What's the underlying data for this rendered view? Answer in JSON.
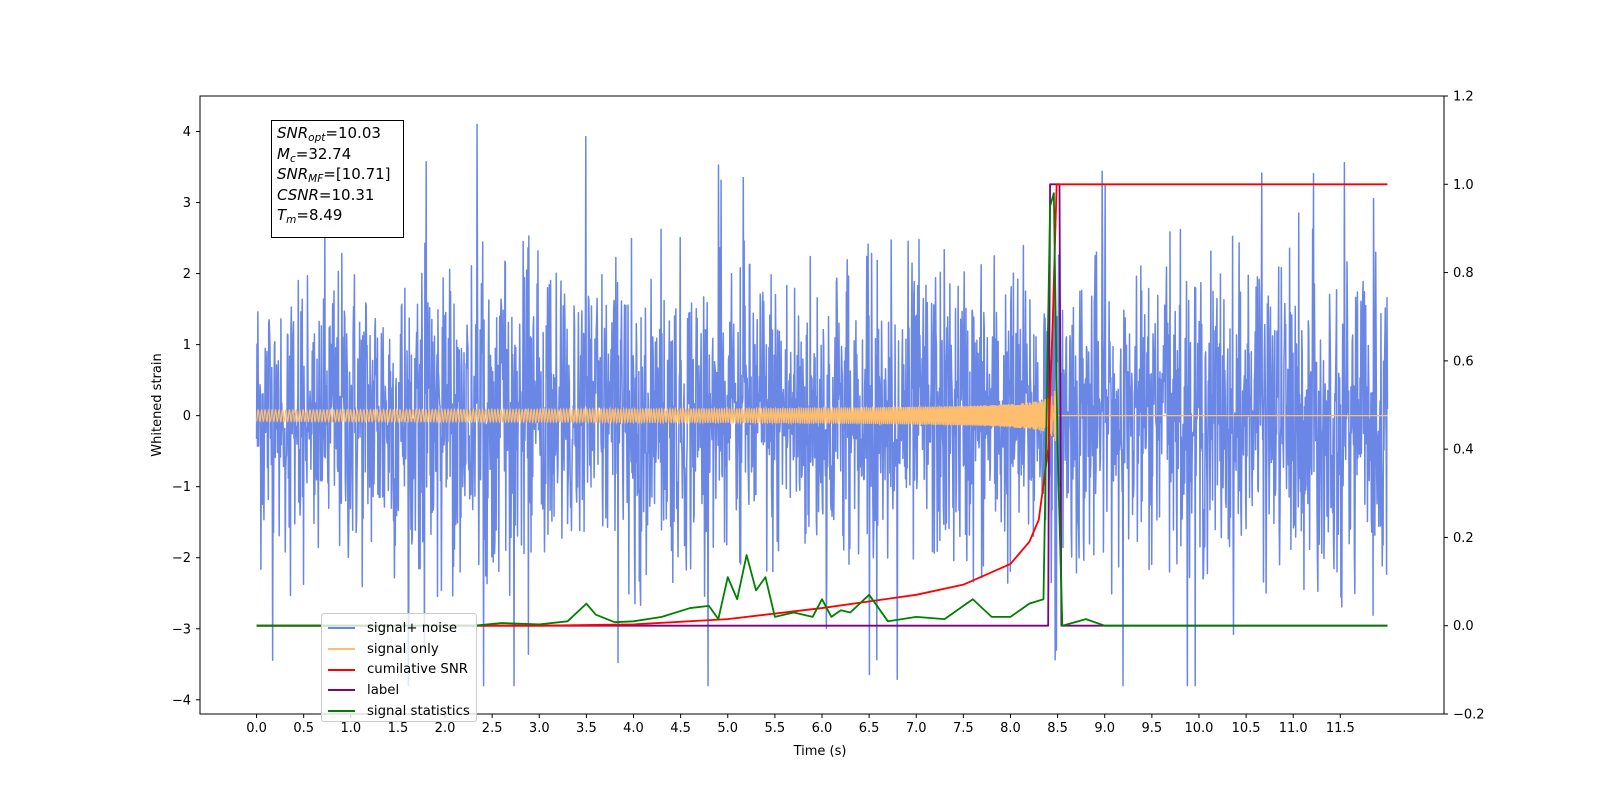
{
  "chart_data": {
    "type": "line",
    "xlabel": "Time (s)",
    "ylabel": "Whitened strain",
    "xlim": [
      -0.6,
      12.6
    ],
    "ylim": [
      -4.2,
      4.5
    ],
    "ylim_right": [
      -0.2,
      1.2
    ],
    "x_ticks": [
      "0.0",
      "0.5",
      "1.0",
      "1.5",
      "2.0",
      "2.5",
      "3.0",
      "3.5",
      "4.0",
      "4.5",
      "5.0",
      "5.5",
      "6.0",
      "6.5",
      "7.0",
      "7.5",
      "8.0",
      "8.5",
      "9.0",
      "9.5",
      "10.0",
      "10.5",
      "11.0",
      "11.5"
    ],
    "y_ticks_left": [
      "−4",
      "−3",
      "−2",
      "−1",
      "0",
      "1",
      "2",
      "3",
      "4"
    ],
    "y_ticks_right": [
      "−0.2",
      "0.0",
      "0.2",
      "0.4",
      "0.6",
      "0.8",
      "1.0",
      "1.2"
    ],
    "annotation": {
      "snr_opt": "10.03",
      "mc": "32.74",
      "snr_mf": "[10.71]",
      "csnr": "10.31",
      "tm": "8.49"
    },
    "legend_placement": "lower-left",
    "series": [
      {
        "name": "signal+ noise",
        "color": "#6a87e6",
        "axis": "left",
        "description_values": "noise band approx ±2.8 with peaks to ±4.1, x 0 to 12"
      },
      {
        "name": "signal only",
        "color": "#ffbe6e",
        "axis": "left",
        "chirp": {
          "t_merge": 8.49,
          "peak_amp": 0.55
        }
      },
      {
        "name": "cumilative SNR",
        "color": "#ff0000",
        "axis": "right",
        "x": [
          0.0,
          3.0,
          4.0,
          5.0,
          6.0,
          7.0,
          7.5,
          8.0,
          8.2,
          8.3,
          8.4,
          8.45,
          8.49,
          8.5,
          12.0
        ],
        "y": [
          0.0,
          0.0,
          0.003,
          0.015,
          0.04,
          0.07,
          0.093,
          0.14,
          0.19,
          0.24,
          0.4,
          0.7,
          1.0,
          1.0,
          1.0
        ]
      },
      {
        "name": "label",
        "color": "#800080",
        "axis": "right",
        "x": [
          0.0,
          8.4,
          8.42,
          8.52,
          8.54,
          12.0
        ],
        "y": [
          0.0,
          0.0,
          1.0,
          1.0,
          0.0,
          0.0
        ]
      },
      {
        "name": "signal statistics",
        "color": "#008000",
        "axis": "right",
        "x": [
          0.0,
          2.3,
          2.6,
          3.0,
          3.3,
          3.5,
          3.6,
          3.8,
          4.0,
          4.3,
          4.6,
          4.8,
          4.9,
          5.0,
          5.1,
          5.2,
          5.3,
          5.4,
          5.5,
          5.7,
          5.9,
          6.0,
          6.1,
          6.2,
          6.3,
          6.5,
          6.7,
          7.0,
          7.3,
          7.6,
          7.8,
          8.0,
          8.2,
          8.35,
          8.42,
          8.46,
          8.5,
          8.55,
          8.8,
          9.0,
          12.0
        ],
        "y": [
          0.0,
          0.0,
          0.006,
          0.003,
          0.01,
          0.05,
          0.025,
          0.008,
          0.01,
          0.02,
          0.04,
          0.045,
          0.015,
          0.11,
          0.06,
          0.16,
          0.08,
          0.11,
          0.02,
          0.03,
          0.02,
          0.06,
          0.02,
          0.035,
          0.03,
          0.07,
          0.01,
          0.02,
          0.015,
          0.06,
          0.02,
          0.02,
          0.05,
          0.06,
          0.95,
          0.98,
          0.4,
          0.0,
          0.015,
          0.0,
          0.0
        ]
      }
    ]
  }
}
